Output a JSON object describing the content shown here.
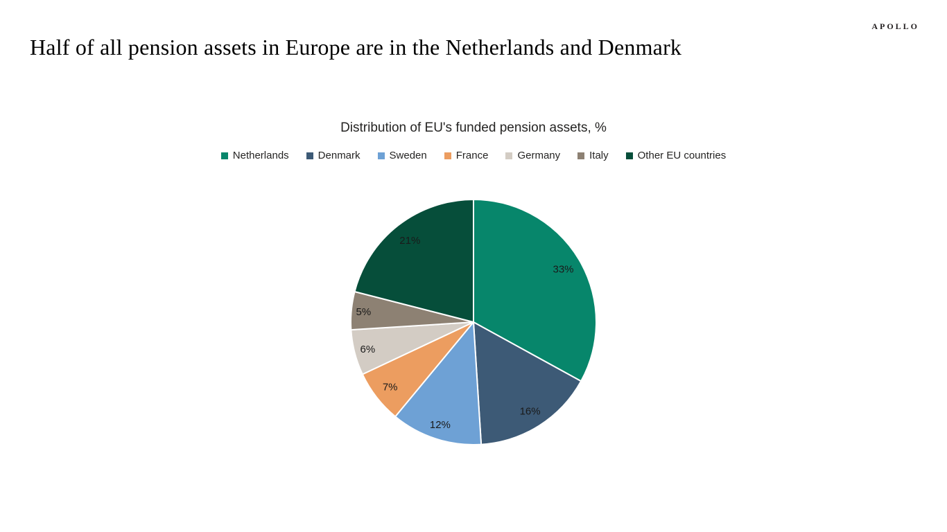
{
  "header": {
    "logo": "APOLLO",
    "title": "Half of all pension assets in Europe are in the Netherlands and Denmark"
  },
  "chart_data": {
    "type": "pie",
    "title": "Distribution of EU's funded pension assets, %",
    "categories": [
      "Netherlands",
      "Denmark",
      "Sweden",
      "France",
      "Germany",
      "Italy",
      "Other EU countries"
    ],
    "values": [
      33,
      16,
      12,
      7,
      6,
      5,
      21
    ],
    "unit": "%",
    "colors": [
      "#07866B",
      "#3D5A76",
      "#6EA1D5",
      "#EC9D60",
      "#D3CCC4",
      "#8D8173",
      "#064E3A"
    ],
    "label_format": "value%",
    "legend_position": "top",
    "start_angle": 0,
    "direction": "clockwise",
    "slice_border_color": "#ffffff"
  }
}
